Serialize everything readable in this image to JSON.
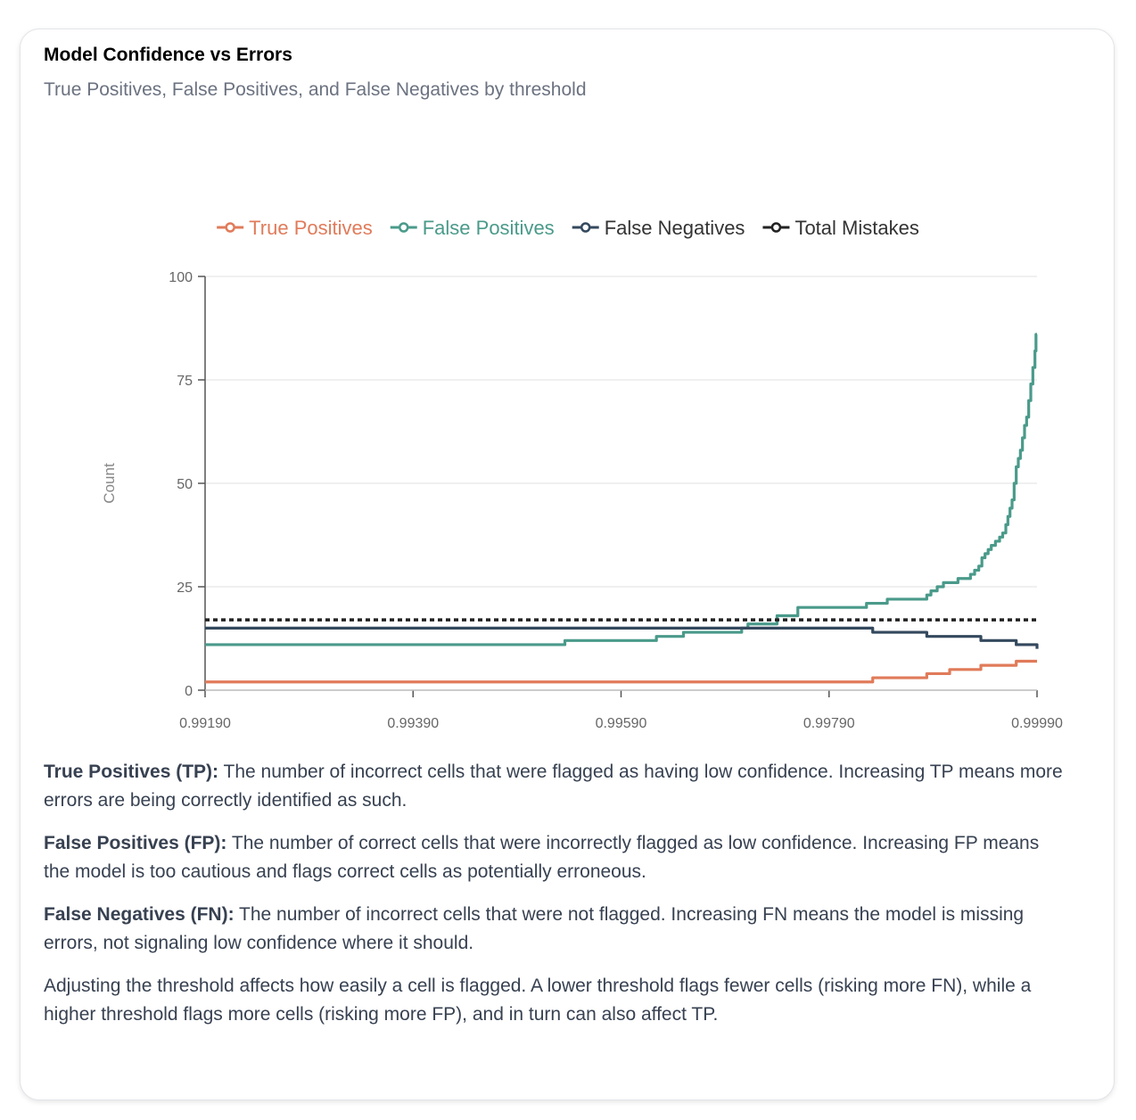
{
  "card": {
    "title": "Model Confidence vs Errors",
    "subtitle": "True Positives, False Positives, and False Negatives by threshold"
  },
  "chart_data": {
    "type": "line",
    "title": "Model Confidence vs Errors",
    "subtitle": "True Positives, False Positives, and False Negatives by threshold",
    "xlabel": "",
    "ylabel": "Count",
    "xlim": [
      0.9919,
      0.9999
    ],
    "ylim": [
      0,
      100
    ],
    "x_ticks": [
      0.9919,
      0.9939,
      0.9959,
      0.9979,
      0.9999
    ],
    "x_tick_labels": [
      "0.99190",
      "0.99390",
      "0.99590",
      "0.99790",
      "0.99990"
    ],
    "y_ticks": [
      0,
      25,
      50,
      75,
      100
    ],
    "y_tick_labels": [
      "0",
      "25",
      "50",
      "75",
      "100"
    ],
    "grid": true,
    "legend_position": "top-center",
    "series": [
      {
        "name": "True Positives",
        "color": "#e07b5a",
        "style": "step",
        "x": [
          0.9919,
          0.99832,
          0.99884,
          0.99906,
          0.99936,
          0.9997,
          0.9999
        ],
        "y": [
          2,
          3,
          4,
          5,
          6,
          7,
          7
        ]
      },
      {
        "name": "False Positives",
        "color": "#4a9a8a",
        "style": "step",
        "x": [
          0.9919,
          0.99536,
          0.99624,
          0.9965,
          0.99706,
          0.99712,
          0.9974,
          0.9976,
          0.99826,
          0.99846,
          0.99884,
          0.99888,
          0.99894,
          0.999,
          0.99914,
          0.99926,
          0.9993,
          0.99934,
          0.99937,
          0.9994,
          0.99943,
          0.99946,
          0.9995,
          0.99954,
          0.99957,
          0.9996,
          0.99962,
          0.99964,
          0.99966,
          0.99968,
          0.9997,
          0.99972,
          0.99974,
          0.99976,
          0.99978,
          0.9998,
          0.99982,
          0.99984,
          0.99986,
          0.99988,
          0.99989,
          0.9999
        ],
        "y": [
          11,
          12,
          13,
          14,
          15,
          16,
          18,
          20,
          21,
          22,
          23,
          24,
          25,
          26,
          27,
          28,
          29,
          30,
          32,
          33,
          34,
          35,
          36,
          37,
          38,
          40,
          42,
          44,
          46,
          50,
          54,
          56,
          58,
          61,
          64,
          66,
          70,
          74,
          78,
          82,
          86,
          86
        ]
      },
      {
        "name": "False Negatives",
        "color": "#34495e",
        "style": "step",
        "x": [
          0.9919,
          0.99832,
          0.99884,
          0.99936,
          0.9997,
          0.9999
        ],
        "y": [
          15,
          14,
          13,
          12,
          11,
          10
        ]
      },
      {
        "name": "Total Mistakes",
        "color": "#222222",
        "style": "dotted",
        "x": [
          0.9919,
          0.9999
        ],
        "y": [
          17,
          17
        ]
      }
    ]
  },
  "descriptions": {
    "tp_term": "True Positives (TP):",
    "tp_text": " The number of incorrect cells that were flagged as having low confidence. Increasing TP means more errors are being correctly identified as such.",
    "fp_term": "False Positives (FP):",
    "fp_text": " The number of correct cells that were incorrectly flagged as low confidence. Increasing FP means the model is too cautious and flags correct cells as potentially erroneous.",
    "fn_term": "False Negatives (FN):",
    "fn_text": " The number of incorrect cells that were not flagged. Increasing FN means the model is missing errors, not signaling low confidence where it should.",
    "note": "Adjusting the threshold affects how easily a cell is flagged. A lower threshold flags fewer cells (risking more FN), while a higher threshold flags more cells (risking more FP), and in turn can also affect TP."
  }
}
